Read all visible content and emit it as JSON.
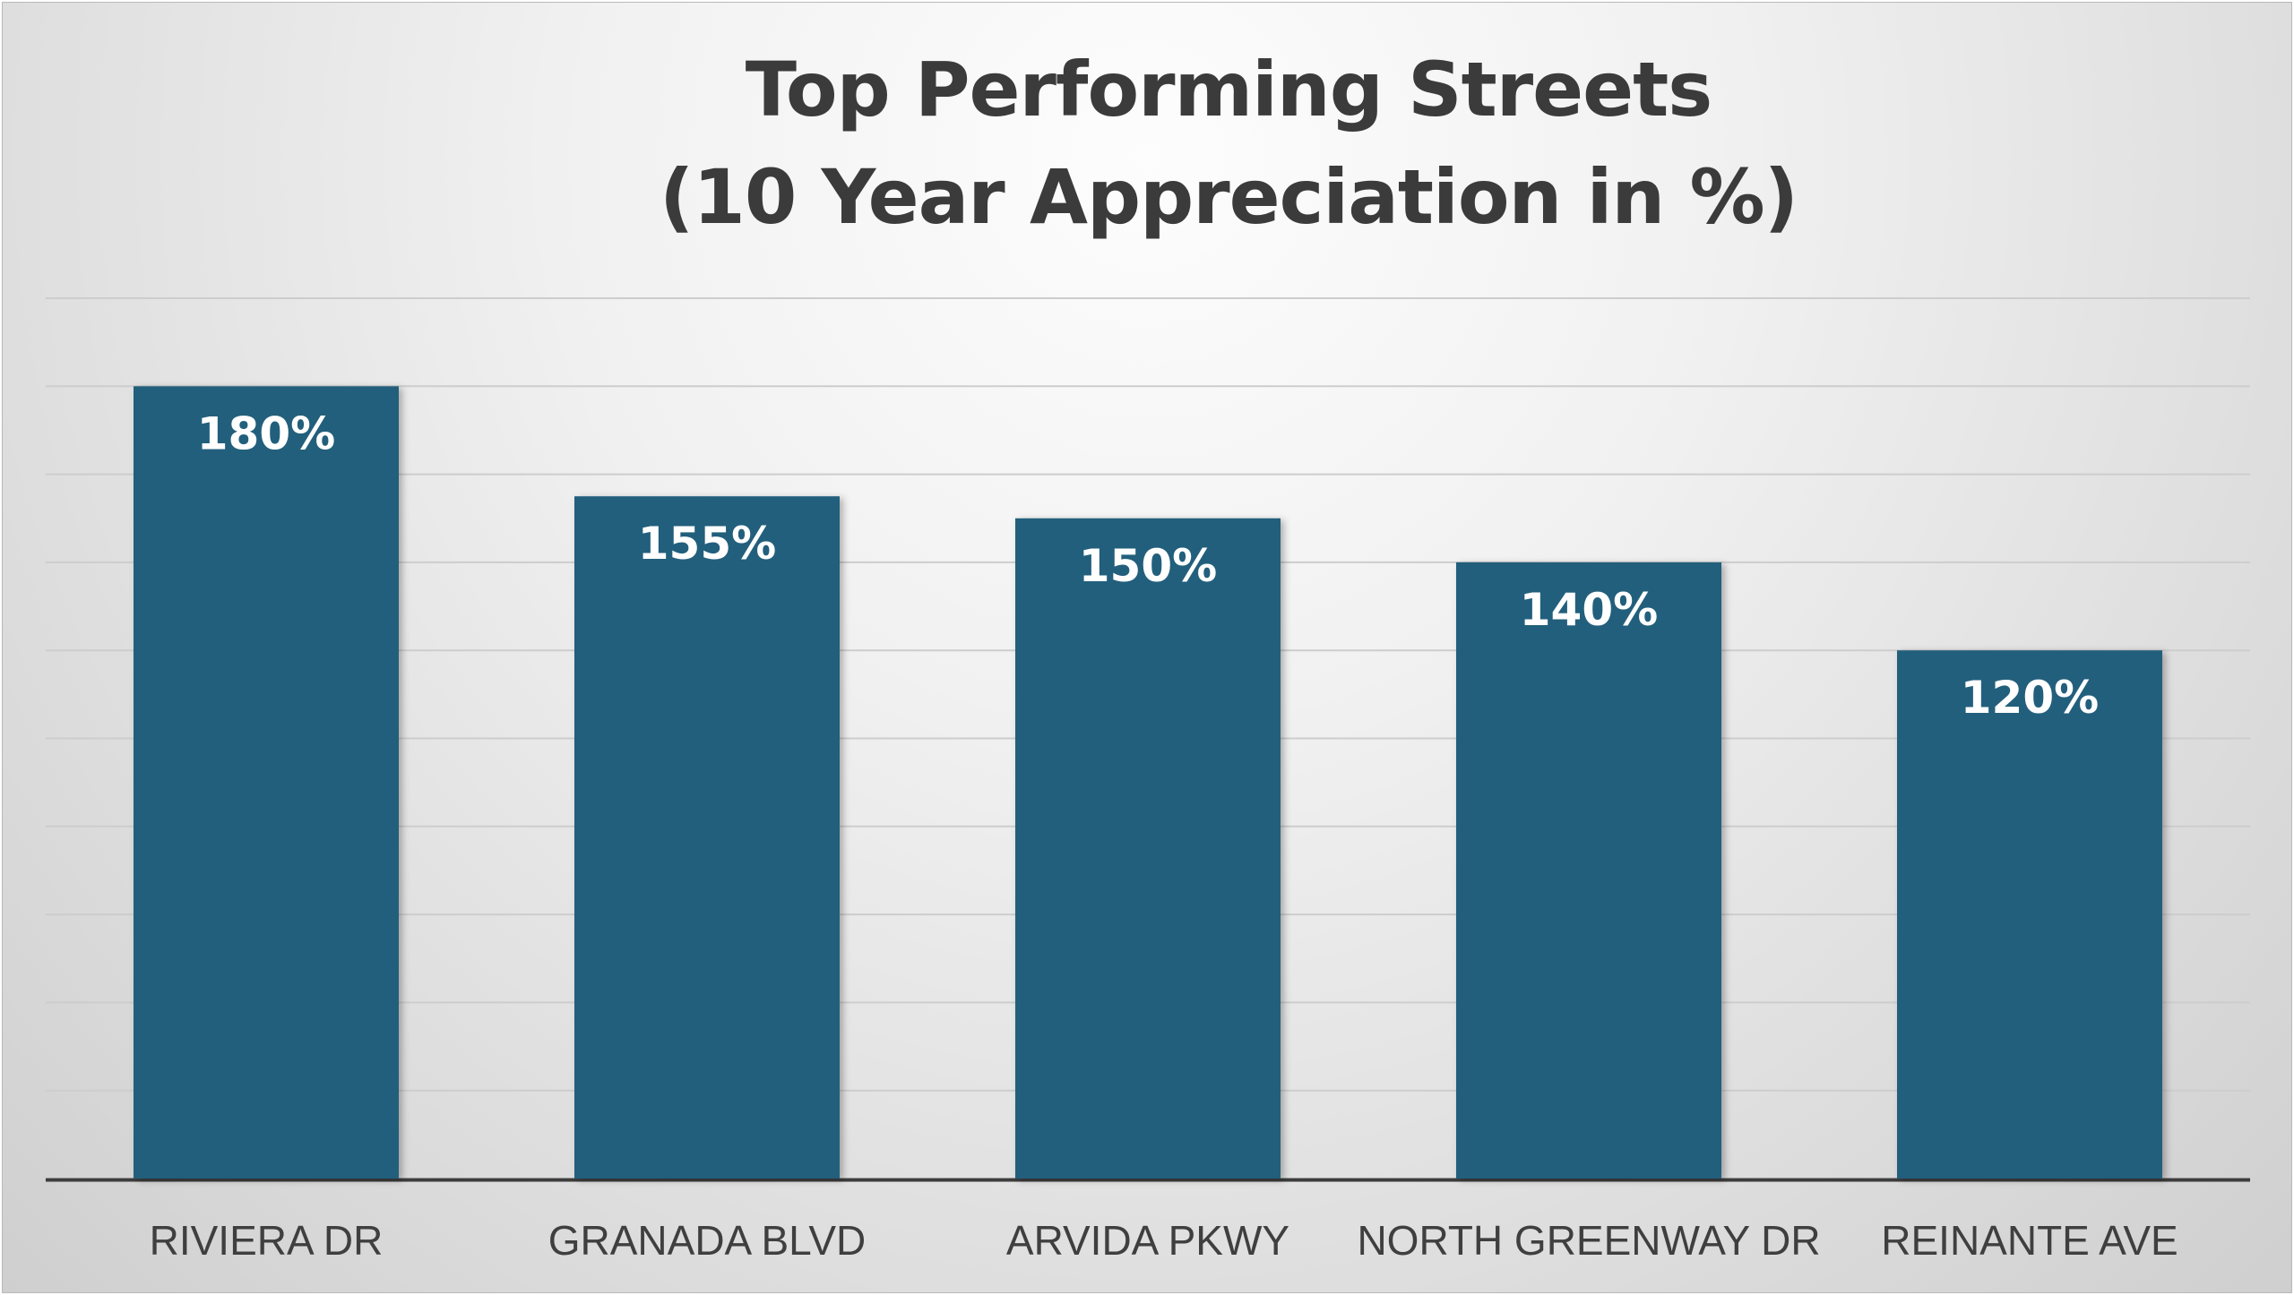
{
  "chart_data": {
    "type": "bar",
    "title": "Top Performing Streets",
    "subtitle": "(10 Year Appreciation in %)",
    "categories": [
      "RIVIERA DR",
      "GRANADA BLVD",
      "ARVIDA PKWY",
      "NORTH GREENWAY DR",
      "REINANTE AVE"
    ],
    "values": [
      180,
      155,
      150,
      140,
      120
    ],
    "data_labels": [
      "180%",
      "155%",
      "150%",
      "140%",
      "120%"
    ],
    "ylim": [
      0,
      200
    ],
    "grid": true,
    "legend": "none",
    "colors": {
      "bar": "#215f7c",
      "grid": "#cdcdcd",
      "axis": "#3d3d3d",
      "title": "#3b3b3b"
    }
  }
}
